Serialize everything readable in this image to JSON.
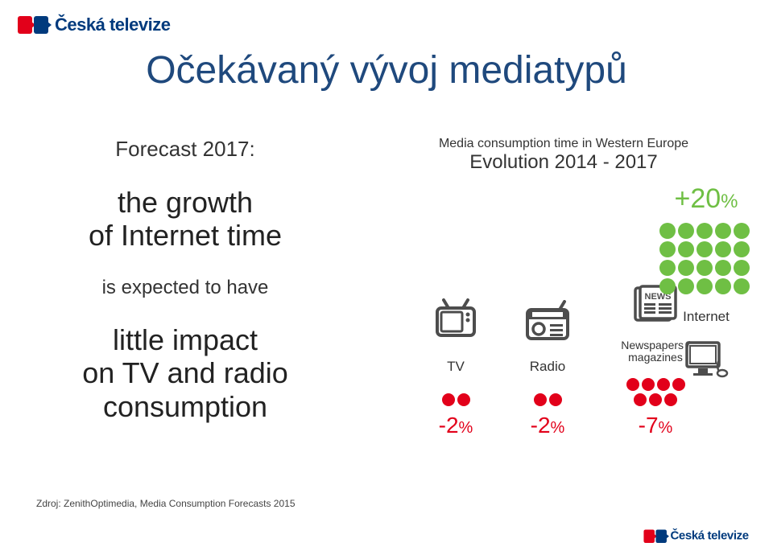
{
  "brand": {
    "name": "Česká televize"
  },
  "title": "Očekávaný vývoj mediatypů",
  "left": {
    "forecast_label": "Forecast 2017:",
    "line1": "the growth",
    "line2": "of Internet time",
    "mid": "is expected to have",
    "line3": "little impact",
    "line4": "on TV and radio",
    "line5": "consumption"
  },
  "chart": {
    "header_small": "Media consumption time in Western Europe",
    "header_large": "Evolution 2014 - 2017",
    "items": [
      {
        "key": "tv",
        "label": "TV",
        "pct_text": "-2",
        "pct_unit": "%",
        "dots": 2,
        "color": "#e2001a",
        "icon": "tv"
      },
      {
        "key": "radio",
        "label": "Radio",
        "pct_text": "-2",
        "pct_unit": "%",
        "dots": 2,
        "color": "#e2001a",
        "icon": "radio"
      },
      {
        "key": "news",
        "label": "Newspapers / magazines",
        "pct_text": "-7",
        "pct_unit": "%",
        "dots": 7,
        "color": "#e2001a",
        "icon": "news",
        "small_label": true,
        "wide": true
      }
    ],
    "internet": {
      "label": "Internet",
      "pct_text": "+20",
      "pct_unit": "%",
      "dots": 20,
      "color": "#6fbf44",
      "icon": "computer"
    }
  },
  "source": "Zdroj: ZenithOptimedia, Media Consumption Forecasts 2015",
  "colors": {
    "title": "#1f497d",
    "negative": "#e2001a",
    "positive": "#6fbf44",
    "icon": "#4d4d4d",
    "brand_red": "#e2001a",
    "brand_blue": "#003a7d"
  }
}
